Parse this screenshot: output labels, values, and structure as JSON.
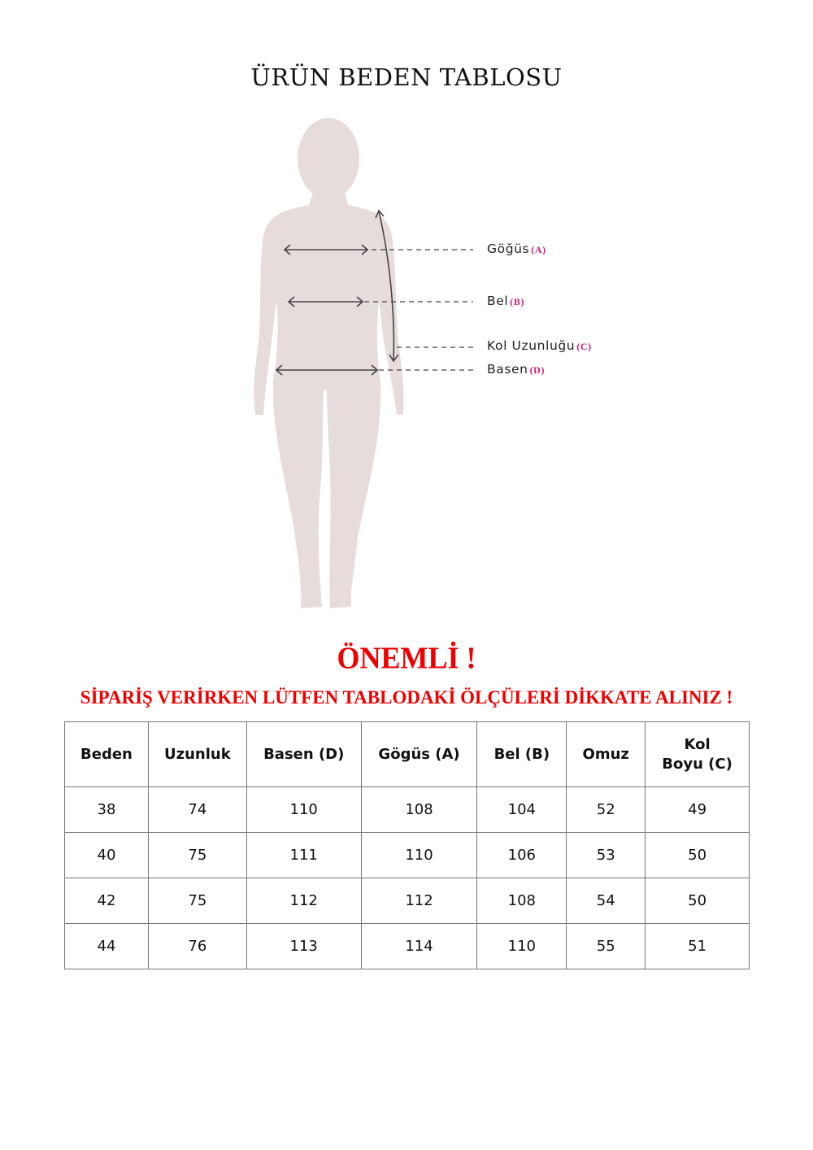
{
  "title": "ÜRÜN BEDEN TABLOSU",
  "figure": {
    "silhouette_color": "#e6dcdc",
    "labels": [
      {
        "text": "Göğüs",
        "code": "(A)"
      },
      {
        "text": "Bel",
        "code": "(B)"
      },
      {
        "text": "Kol Uzunluğu",
        "code": "(C)"
      },
      {
        "text": "Basen",
        "code": "(D)"
      }
    ]
  },
  "important": "ÖNEMLİ !",
  "notice": "SİPARİŞ VERİRKEN LÜTFEN TABLODAKİ ÖLÇÜLERİ DİKKATE ALINIZ !",
  "accent_color": "#e00000",
  "table": {
    "headers": [
      "Beden",
      "Uzunluk",
      "Basen (D)",
      "Gögüs (A)",
      "Bel (B)",
      "Omuz",
      "Kol\nBoyu (C)"
    ],
    "rows": [
      [
        "38",
        "74",
        "110",
        "108",
        "104",
        "52",
        "49"
      ],
      [
        "40",
        "75",
        "111",
        "110",
        "106",
        "53",
        "50"
      ],
      [
        "42",
        "75",
        "112",
        "112",
        "108",
        "54",
        "50"
      ],
      [
        "44",
        "76",
        "113",
        "114",
        "110",
        "55",
        "51"
      ]
    ]
  }
}
